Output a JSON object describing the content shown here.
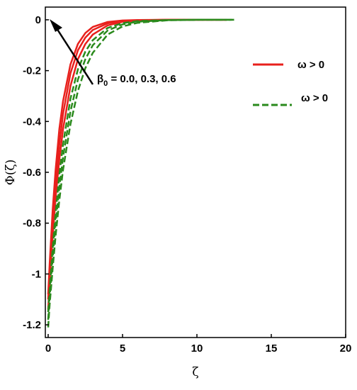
{
  "chart_data": {
    "type": "line",
    "xlabel": "ζ",
    "ylabel": "Φ(ζ)",
    "xlim": [
      0,
      20
    ],
    "ylim": [
      -1.25,
      0.05
    ],
    "xticks": [
      "0",
      "5",
      "10",
      "15",
      "20"
    ],
    "yticks": [
      "0",
      "-0.2",
      "-0.4",
      "-0.6",
      "-0.8",
      "-1",
      "-1.2"
    ],
    "grid": false,
    "legend_position": "top-right",
    "legend": [
      {
        "label": "ω > 0",
        "color": "#e8201c",
        "dash": "solid"
      },
      {
        "label": "ω > 0",
        "color": "#2a8a1c",
        "dash": "dashed"
      }
    ],
    "annotation": {
      "sym": "β",
      "sub": "0",
      "text": " = 0.0, 0.3, 0.6"
    },
    "series": [
      {
        "color": "#e8201c",
        "dash": "solid",
        "x_end": 12.0,
        "x": [
          0,
          0.1,
          0.3,
          0.5,
          0.75,
          1,
          1.5,
          2,
          2.5,
          3,
          4,
          5,
          6,
          8,
          10,
          12
        ],
        "y": [
          -1.08,
          -0.96,
          -0.75,
          -0.59,
          -0.43,
          -0.32,
          -0.175,
          -0.095,
          -0.052,
          -0.028,
          -0.0085,
          -0.0025,
          -0.0008,
          0,
          0,
          0
        ]
      },
      {
        "color": "#e8201c",
        "dash": "solid",
        "x_end": 12.0,
        "x": [
          0,
          0.1,
          0.3,
          0.5,
          0.75,
          1,
          1.5,
          2,
          2.5,
          3,
          4,
          5,
          6,
          8,
          10,
          12
        ],
        "y": [
          -1.1,
          -0.99,
          -0.8,
          -0.64,
          -0.49,
          -0.37,
          -0.21,
          -0.12,
          -0.07,
          -0.04,
          -0.014,
          -0.005,
          -0.0018,
          0,
          0,
          0
        ]
      },
      {
        "color": "#e8201c",
        "dash": "solid",
        "x_end": 12.0,
        "x": [
          0,
          0.1,
          0.3,
          0.5,
          0.75,
          1,
          1.5,
          2,
          2.5,
          3,
          4,
          5,
          6,
          8,
          10,
          12
        ],
        "y": [
          -1.14,
          -1.03,
          -0.85,
          -0.7,
          -0.55,
          -0.43,
          -0.26,
          -0.155,
          -0.095,
          -0.058,
          -0.022,
          -0.008,
          -0.003,
          0,
          0,
          0
        ]
      },
      {
        "color": "#2a8a1c",
        "dash": "dashed",
        "x_end": 12.5,
        "x": [
          0,
          0.1,
          0.3,
          0.5,
          0.75,
          1,
          1.5,
          2,
          2.5,
          3,
          4,
          5,
          6,
          8,
          10,
          12.5
        ],
        "y": [
          -1.15,
          -1.06,
          -0.9,
          -0.76,
          -0.61,
          -0.49,
          -0.31,
          -0.195,
          -0.125,
          -0.08,
          -0.032,
          -0.013,
          -0.005,
          -0.0008,
          0,
          0
        ]
      },
      {
        "color": "#2a8a1c",
        "dash": "dashed",
        "x_end": 12.5,
        "x": [
          0,
          0.1,
          0.3,
          0.5,
          0.75,
          1,
          1.5,
          2,
          2.5,
          3,
          4,
          5,
          6,
          8,
          10,
          12.5
        ],
        "y": [
          -1.18,
          -1.09,
          -0.94,
          -0.8,
          -0.66,
          -0.54,
          -0.36,
          -0.235,
          -0.155,
          -0.1,
          -0.042,
          -0.018,
          -0.0075,
          -0.0013,
          0,
          0
        ]
      },
      {
        "color": "#2a8a1c",
        "dash": "dashed",
        "x_end": 12.5,
        "x": [
          0,
          0.1,
          0.3,
          0.5,
          0.75,
          1,
          1.5,
          2,
          2.5,
          3,
          4,
          5,
          6,
          8,
          10,
          12.5
        ],
        "y": [
          -1.21,
          -1.12,
          -0.98,
          -0.85,
          -0.71,
          -0.59,
          -0.41,
          -0.28,
          -0.19,
          -0.13,
          -0.058,
          -0.026,
          -0.012,
          -0.002,
          0,
          0
        ]
      }
    ]
  }
}
